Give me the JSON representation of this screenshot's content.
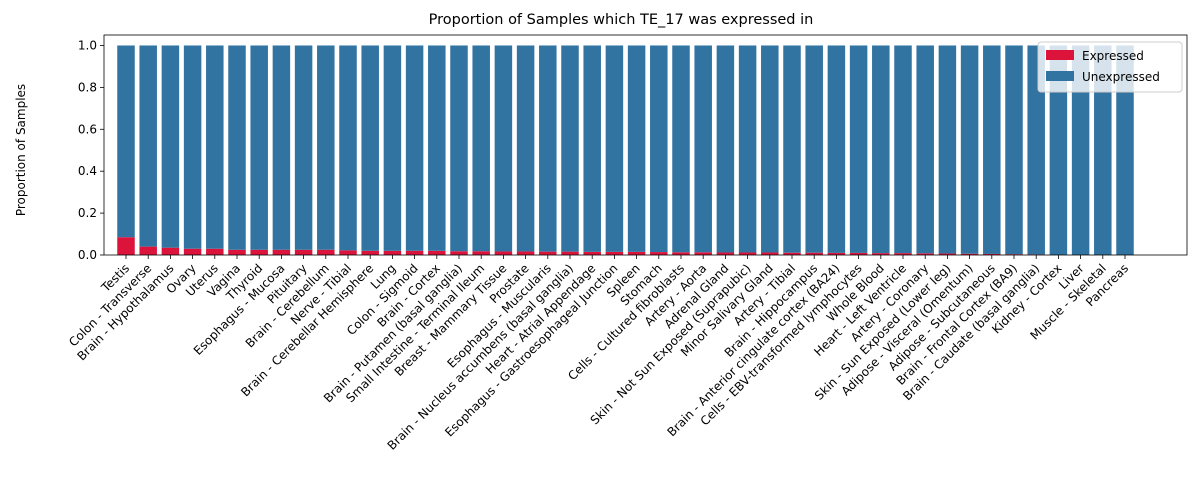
{
  "chart_data": {
    "type": "bar",
    "stacked": true,
    "title": "Proportion of Samples which TE_17 was expressed in",
    "xlabel": "",
    "ylabel": "Proportion of Samples",
    "ylim": [
      0,
      1.05
    ],
    "yticks": [
      "0.0",
      "0.2",
      "0.4",
      "0.6",
      "0.8",
      "1.0"
    ],
    "grid": false,
    "legend_position": "top-right",
    "categories": [
      "Testis",
      "Colon - Transverse",
      "Brain - Hypothalamus",
      "Ovary",
      "Uterus",
      "Vagina",
      "Thyroid",
      "Esophagus - Mucosa",
      "Pituitary",
      "Brain - Cerebellum",
      "Nerve - Tibial",
      "Brain - Cerebellar Hemisphere",
      "Lung",
      "Colon - Sigmoid",
      "Brain - Cortex",
      "Brain - Putamen (basal ganglia)",
      "Small Intestine - Terminal Ileum",
      "Breast - Mammary Tissue",
      "Prostate",
      "Esophagus - Muscularis",
      "Brain - Nucleus accumbens (basal ganglia)",
      "Heart - Atrial Appendage",
      "Esophagus - Gastroesophageal Junction",
      "Spleen",
      "Stomach",
      "Cells - Cultured fibroblasts",
      "Artery - Aorta",
      "Adrenal Gland",
      "Skin - Not Sun Exposed (Suprapubic)",
      "Minor Salivary Gland",
      "Artery - Tibial",
      "Brain - Hippocampus",
      "Brain - Anterior cingulate cortex (BA24)",
      "Cells - EBV-transformed lymphocytes",
      "Whole Blood",
      "Heart - Left Ventricle",
      "Artery - Coronary",
      "Skin - Sun Exposed (Lower leg)",
      "Adipose - Visceral (Omentum)",
      "Adipose - Subcutaneous",
      "Brain - Frontal Cortex (BA9)",
      "Brain - Caudate (basal ganglia)",
      "Kidney - Cortex",
      "Liver",
      "Muscle - Skeletal",
      "Pancreas"
    ],
    "series": [
      {
        "name": "Expressed",
        "color": "#dc143c",
        "values": [
          0.085,
          0.04,
          0.035,
          0.03,
          0.03,
          0.025,
          0.025,
          0.025,
          0.025,
          0.025,
          0.022,
          0.02,
          0.02,
          0.02,
          0.02,
          0.018,
          0.018,
          0.017,
          0.017,
          0.016,
          0.016,
          0.015,
          0.015,
          0.015,
          0.014,
          0.013,
          0.013,
          0.012,
          0.012,
          0.012,
          0.011,
          0.011,
          0.01,
          0.01,
          0.009,
          0.009,
          0.008,
          0.007,
          0.006,
          0.005,
          0.004,
          0.003,
          0.0,
          0.0,
          0.0,
          0.0
        ]
      },
      {
        "name": "Unexpressed",
        "color": "#3274a1",
        "values": [
          0.915,
          0.96,
          0.965,
          0.97,
          0.97,
          0.975,
          0.975,
          0.975,
          0.975,
          0.975,
          0.978,
          0.98,
          0.98,
          0.98,
          0.98,
          0.982,
          0.982,
          0.983,
          0.983,
          0.984,
          0.984,
          0.985,
          0.985,
          0.985,
          0.986,
          0.987,
          0.987,
          0.988,
          0.988,
          0.988,
          0.989,
          0.989,
          0.99,
          0.99,
          0.991,
          0.991,
          0.992,
          0.993,
          0.994,
          0.995,
          0.996,
          0.997,
          1.0,
          1.0,
          1.0,
          1.0
        ]
      }
    ]
  }
}
